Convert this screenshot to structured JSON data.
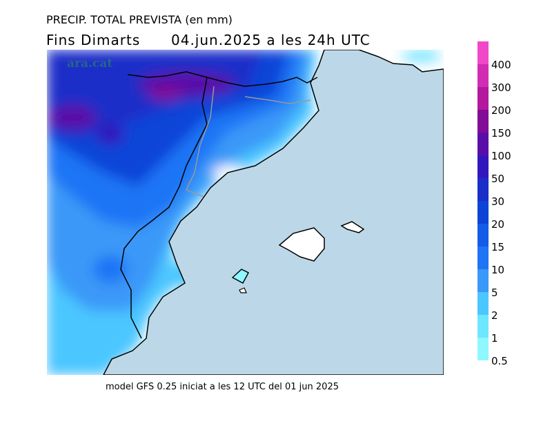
{
  "header": {
    "title": "PRECIP. TOTAL PREVISTA (en mm)",
    "period": "Fins Dimarts",
    "valid_time": "04.jun.2025 a les 24h UTC"
  },
  "watermark": "ara.cat",
  "legend": {
    "levels": [
      {
        "value": 0.5,
        "color": "#8ff7ff"
      },
      {
        "value": 1,
        "color": "#6ee6ff"
      },
      {
        "value": 2,
        "color": "#4cc6ff"
      },
      {
        "value": 5,
        "color": "#3a98f8"
      },
      {
        "value": 10,
        "color": "#1e74f5"
      },
      {
        "value": 15,
        "color": "#145ce8"
      },
      {
        "value": 20,
        "color": "#0c44d8"
      },
      {
        "value": 30,
        "color": "#1a2ec8"
      },
      {
        "value": 50,
        "color": "#3218bc"
      },
      {
        "value": 100,
        "color": "#5a0ea8"
      },
      {
        "value": 150,
        "color": "#820c96"
      },
      {
        "value": 200,
        "color": "#b4189e"
      },
      {
        "value": 300,
        "color": "#d22cb4"
      },
      {
        "value": 400,
        "color": "#f048c8"
      }
    ]
  },
  "footer": "model GFS 0.25 iniciat a les 12 UTC del 01 jun 2025"
}
